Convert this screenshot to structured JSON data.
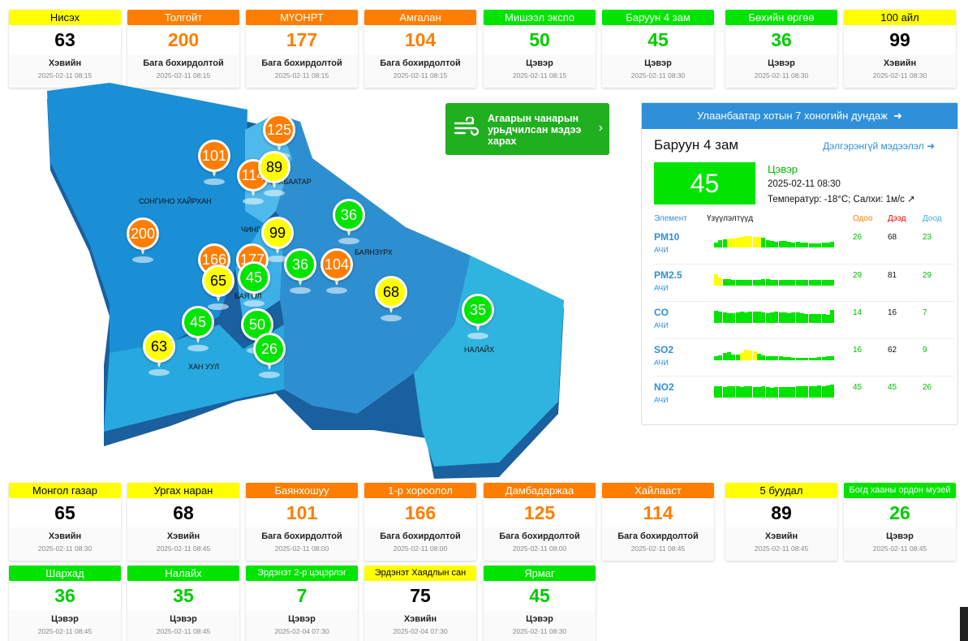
{
  "colors": {
    "good": "#00e400",
    "moderate": "#ffff00",
    "unhealthy_sensitive": "#ff7e00",
    "panel_header": "#2f8fd8"
  },
  "top_cards": [
    {
      "name": "Нисэх",
      "value": "63",
      "status": "Хэвийн",
      "time": "2025-02-11 08:15",
      "level": "yellow"
    },
    {
      "name": "Толгойт",
      "value": "200",
      "status": "Бага бохирдолтой",
      "time": "2025-02-11 08:15",
      "level": "orange"
    },
    {
      "name": "МҮОНРТ",
      "value": "177",
      "status": "Бага бохирдолтой",
      "time": "2025-02-11 08:15",
      "level": "orange"
    },
    {
      "name": "Амгалан",
      "value": "104",
      "status": "Бага бохирдолтой",
      "time": "2025-02-11 08:15",
      "level": "orange"
    },
    {
      "name": "Мишээл экспо",
      "value": "50",
      "status": "Цэвэр",
      "time": "2025-02-11 08:15",
      "level": "green"
    },
    {
      "name": "Баруун 4 зам",
      "value": "45",
      "status": "Цэвэр",
      "time": "2025-02-11 08:30",
      "level": "green"
    },
    {
      "name": "Бөхийн өргөө",
      "value": "36",
      "status": "Цэвэр",
      "time": "2025-02-11 08:30",
      "level": "green"
    },
    {
      "name": "100 айл",
      "value": "99",
      "status": "Хэвийн",
      "time": "2025-02-11 08:30",
      "level": "yellow"
    }
  ],
  "bottom_cards_row1": [
    {
      "name": "Монгол газар",
      "value": "65",
      "status": "Хэвийн",
      "time": "2025-02-11 08:30",
      "level": "yellow"
    },
    {
      "name": "Ургах наран",
      "value": "68",
      "status": "Хэвийн",
      "time": "2025-02-11 08:45",
      "level": "yellow"
    },
    {
      "name": "Баянхошуу",
      "value": "101",
      "status": "Бага бохирдолтой",
      "time": "2025-02-11 08:00",
      "level": "orange"
    },
    {
      "name": "1-р хороолол",
      "value": "166",
      "status": "Бага бохирдолтой",
      "time": "2025-02-11 08:00",
      "level": "orange"
    },
    {
      "name": "Дамбадаржаа",
      "value": "125",
      "status": "Бага бохирдолтой",
      "time": "2025-02-11 08:00",
      "level": "orange"
    },
    {
      "name": "Хайлааст",
      "value": "114",
      "status": "Бага бохирдолтой",
      "time": "2025-02-11 08:45",
      "level": "orange"
    },
    {
      "name": "5 буудал",
      "value": "89",
      "status": "Хэвийн",
      "time": "2025-02-11 08:45",
      "level": "yellow"
    },
    {
      "name": "Богд хааны ордон музей",
      "value": "26",
      "status": "Цэвэр",
      "time": "2025-02-11 08:45",
      "level": "green"
    }
  ],
  "bottom_cards_row2": [
    {
      "name": "Шархад",
      "value": "36",
      "status": "Цэвэр",
      "time": "2025-02-11 08:45",
      "level": "green"
    },
    {
      "name": "Налайх",
      "value": "35",
      "status": "Цэвэр",
      "time": "2025-02-11 08:45",
      "level": "green"
    },
    {
      "name": "Эрдэнэт 2-р цэцэрлэг",
      "value": "7",
      "status": "Цэвэр",
      "time": "2025-02-04 07:30",
      "level": "green"
    },
    {
      "name": "Эрдэнэт Хаядлын сан",
      "value": "75",
      "status": "Хэвийн",
      "time": "2025-02-04 07:30",
      "level": "yellow"
    },
    {
      "name": "Ярмаг",
      "value": "45",
      "status": "Цэвэр",
      "time": "2025-02-11 08:30",
      "level": "green"
    }
  ],
  "map": {
    "district_labels": [
      "СОНГИНО ХАЙРХАН",
      "ЧИНГ",
      "БАЯНЗҮРХ",
      "БАЯ   ОЛ",
      "ХАН УУЛ",
      "НАЛАЙХ",
      "СҮХБААТАР"
    ],
    "pins": [
      {
        "value": "125",
        "level": "o"
      },
      {
        "value": "101",
        "level": "o"
      },
      {
        "value": "114",
        "level": "o"
      },
      {
        "value": "89",
        "level": "y"
      },
      {
        "value": "36",
        "level": "g"
      },
      {
        "value": "200",
        "level": "o"
      },
      {
        "value": "99",
        "level": "y"
      },
      {
        "value": "166",
        "level": "o"
      },
      {
        "value": "177",
        "level": "o"
      },
      {
        "value": "65",
        "level": "y"
      },
      {
        "value": "45",
        "level": "g"
      },
      {
        "value": "36",
        "level": "g"
      },
      {
        "value": "104",
        "level": "o"
      },
      {
        "value": "68",
        "level": "y"
      },
      {
        "value": "35",
        "level": "g"
      },
      {
        "value": "45",
        "level": "g"
      },
      {
        "value": "50",
        "level": "g"
      },
      {
        "value": "63",
        "level": "y"
      },
      {
        "value": "26",
        "level": "g"
      }
    ]
  },
  "forecast_button": {
    "text": "Агаарын чанарын урьдчилсан мэдээ харах",
    "icon": "wind-icon"
  },
  "panel": {
    "header": "Улаанбаатар хотын 7 хоногийн дундаж",
    "station": "Баруун 4 зам",
    "detail_link": "Дэлгэрэнгүй мэдээлэл",
    "aqi": "45",
    "status": "Цэвэр",
    "datetime": "2025-02-11 08:30",
    "weather": "Температур: -18°C; Салхи: 1м/с",
    "col_element": "Элемент",
    "col_trend": "Үзүүлэлтүүд",
    "col_now": "Одоо",
    "col_max": "Дээд",
    "col_min": "Доод",
    "pollutants": [
      {
        "name": "PM10",
        "unit": "АЧИ",
        "now": "26",
        "max": "68",
        "min": "23",
        "bars": [
          0.35,
          0.5,
          0.55,
          0.6,
          0.6,
          0.65,
          0.7,
          0.75,
          0.75,
          0.7,
          0.7,
          0.65,
          0.5,
          0.45,
          0.4,
          0.45,
          0.45,
          0.4,
          0.35,
          0.4,
          0.35,
          0.35,
          0.3,
          0.3,
          0.3,
          0.35,
          0.35,
          0.4
        ]
      },
      {
        "name": "PM2.5",
        "unit": "АЧИ",
        "now": "29",
        "max": "81",
        "min": "29",
        "bars": [
          0.75,
          0.55,
          0.45,
          0.45,
          0.4,
          0.4,
          0.4,
          0.4,
          0.4,
          0.4,
          0.4,
          0.45,
          0.45,
          0.4,
          0.4,
          0.4,
          0.4,
          0.4,
          0.4,
          0.4,
          0.4,
          0.4,
          0.4,
          0.4,
          0.4,
          0.4,
          0.4,
          0.4
        ]
      },
      {
        "name": "CO",
        "unit": "АЧИ",
        "now": "14",
        "max": "16",
        "min": "7",
        "bars": [
          0.85,
          0.75,
          0.7,
          0.65,
          0.65,
          0.7,
          0.75,
          0.7,
          0.8,
          0.75,
          0.75,
          0.7,
          0.65,
          0.7,
          0.75,
          0.7,
          0.7,
          0.65,
          0.7,
          0.7,
          0.65,
          0.6,
          0.6,
          0.6,
          0.6,
          0.6,
          0.55,
          0.9
        ]
      },
      {
        "name": "SO2",
        "unit": "АЧИ",
        "now": "16",
        "max": "62",
        "min": "9",
        "bars": [
          0.3,
          0.35,
          0.5,
          0.55,
          0.4,
          0.4,
          0.5,
          0.7,
          0.65,
          0.6,
          0.45,
          0.35,
          0.3,
          0.3,
          0.25,
          0.25,
          0.2,
          0.2,
          0.15,
          0.15,
          0.15,
          0.15,
          0.15,
          0.15,
          0.2,
          0.2,
          0.25,
          0.3
        ]
      },
      {
        "name": "NO2",
        "unit": "АЧИ",
        "now": "45",
        "max": "45",
        "min": "26",
        "bars": [
          0.8,
          0.75,
          0.7,
          0.75,
          0.8,
          0.75,
          0.7,
          0.75,
          0.75,
          0.7,
          0.7,
          0.75,
          0.7,
          0.65,
          0.7,
          0.7,
          0.7,
          0.7,
          0.7,
          0.75,
          0.8,
          0.75,
          0.75,
          0.8,
          0.85,
          0.8,
          0.85,
          0.9
        ]
      }
    ]
  }
}
